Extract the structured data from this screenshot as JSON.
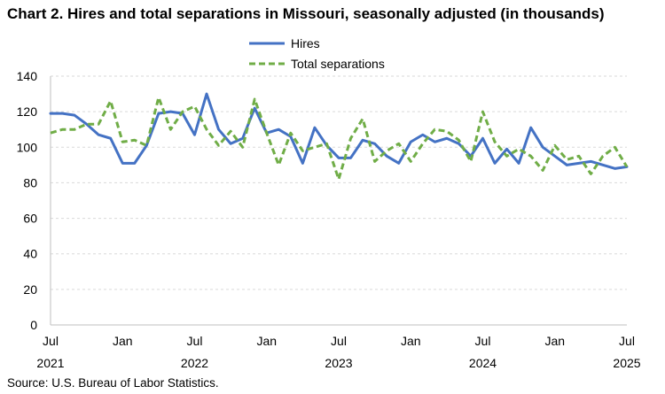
{
  "title": "Chart 2. Hires and total separations in Missouri, seasonally adjusted (in thousands)",
  "source": "Source: U.S. Bureau of Labor Statistics.",
  "chart_data": {
    "type": "line",
    "title": "Chart 2. Hires and total separations in Missouri, seasonally adjusted (in thousands)",
    "xlabel": "",
    "ylabel": "",
    "ylim": [
      0,
      140
    ],
    "yticks": [
      0,
      20,
      40,
      60,
      80,
      100,
      120,
      140
    ],
    "grid": true,
    "legend_position": "top-center",
    "x_start": "2021-07",
    "x_end": "2025-07",
    "x_ticks": [
      {
        "month": "Jul",
        "year": "2021",
        "index": 0
      },
      {
        "month": "Jan",
        "year": "",
        "index": 6
      },
      {
        "month": "Jul",
        "year": "2022",
        "index": 12
      },
      {
        "month": "Jan",
        "year": "",
        "index": 18
      },
      {
        "month": "Jul",
        "year": "2023",
        "index": 24
      },
      {
        "month": "Jan",
        "year": "",
        "index": 30
      },
      {
        "month": "Jul",
        "year": "2024",
        "index": 36
      },
      {
        "month": "Jan",
        "year": "",
        "index": 42
      },
      {
        "month": "Jul",
        "year": "2025",
        "index": 48
      }
    ],
    "series": [
      {
        "name": "Hires",
        "color": "#4472c4",
        "style": "solid",
        "values": [
          119,
          119,
          118,
          113,
          107,
          105,
          91,
          91,
          101,
          119,
          120,
          119,
          107,
          130,
          110,
          102,
          105,
          122,
          108,
          110,
          106,
          91,
          111,
          101,
          94,
          94,
          104,
          102,
          95,
          91,
          103,
          107,
          103,
          105,
          102,
          95,
          105,
          91,
          99,
          91,
          111,
          100,
          95,
          90,
          91,
          92,
          90,
          88,
          89
        ]
      },
      {
        "name": "Total separations",
        "color": "#70ad47",
        "style": "dashed",
        "values": [
          108,
          110,
          110,
          113,
          113,
          126,
          103,
          104,
          101,
          128,
          110,
          120,
          123,
          110,
          101,
          109,
          100,
          127,
          108,
          90,
          108,
          98,
          100,
          102,
          82,
          105,
          116,
          92,
          98,
          102,
          92,
          102,
          110,
          109,
          104,
          92,
          120,
          103,
          95,
          99,
          95,
          87,
          101,
          93,
          95,
          85,
          95,
          100,
          89
        ]
      }
    ]
  }
}
